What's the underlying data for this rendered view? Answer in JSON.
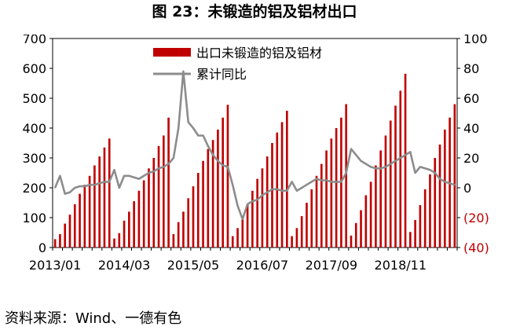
{
  "figure": {
    "title": "图 23：未锻造的铝及铝材出口",
    "source": "资料来源：Wind、一德有色"
  },
  "colors": {
    "bar": "#c00000",
    "line": "#8c8c8c",
    "right_axis_negative": "#c00000",
    "frame": "#000000"
  },
  "chart_data": {
    "type": "bar",
    "legend_position": "top-center",
    "grid": false,
    "x_tick_labels": [
      "2013/01",
      "2014/03",
      "2015/05",
      "2016/07",
      "2017/09",
      "2018/11"
    ],
    "x_tick_indices": [
      0,
      14,
      28,
      42,
      56,
      70
    ],
    "y_left": {
      "min": 0,
      "max": 700,
      "ticks": [
        "0",
        "100",
        "200",
        "300",
        "400",
        "500",
        "600",
        "700"
      ]
    },
    "y_right": {
      "min": -40,
      "max": 100,
      "ticks": [
        "(40)",
        "(20)",
        "0",
        "20",
        "40",
        "60",
        "80",
        "100"
      ],
      "tick_values": [
        -40,
        -20,
        0,
        20,
        40,
        60,
        80,
        100
      ]
    },
    "series": [
      {
        "name": "出口未锻造的铝及铝材",
        "type": "bar",
        "axis": "left",
        "values": [
          28,
          45,
          80,
          110,
          145,
          180,
          210,
          240,
          275,
          305,
          335,
          365,
          30,
          48,
          90,
          120,
          155,
          190,
          225,
          265,
          300,
          340,
          375,
          435,
          45,
          85,
          120,
          165,
          205,
          250,
          290,
          330,
          360,
          395,
          435,
          478,
          38,
          65,
          105,
          145,
          190,
          230,
          265,
          305,
          350,
          385,
          420,
          458,
          38,
          65,
          105,
          150,
          195,
          240,
          280,
          325,
          365,
          400,
          435,
          480,
          40,
          82,
          125,
          175,
          220,
          275,
          325,
          375,
          425,
          475,
          525,
          582,
          52,
          92,
          142,
          195,
          245,
          300,
          345,
          395,
          435,
          480
        ]
      },
      {
        "name": "累计同比",
        "type": "line",
        "axis": "right",
        "values": [
          0,
          8,
          -4,
          -3,
          0,
          1,
          1,
          2,
          2,
          3,
          4,
          4,
          12,
          0,
          8,
          8,
          7,
          6,
          8,
          10,
          11,
          13,
          14,
          16,
          20,
          40,
          78,
          44,
          40,
          35,
          35,
          28,
          22,
          18,
          15,
          14,
          2,
          -12,
          -21,
          -11,
          -9,
          -8,
          -5,
          -3,
          -1,
          -1,
          -2,
          -2,
          4,
          -2,
          0,
          2,
          4,
          6,
          5,
          5,
          4,
          4,
          4,
          10,
          26,
          22,
          18,
          16,
          14,
          13,
          13,
          14,
          16,
          18,
          20,
          22,
          24,
          10,
          14,
          13,
          12,
          10,
          6,
          4,
          3,
          2
        ]
      }
    ]
  }
}
